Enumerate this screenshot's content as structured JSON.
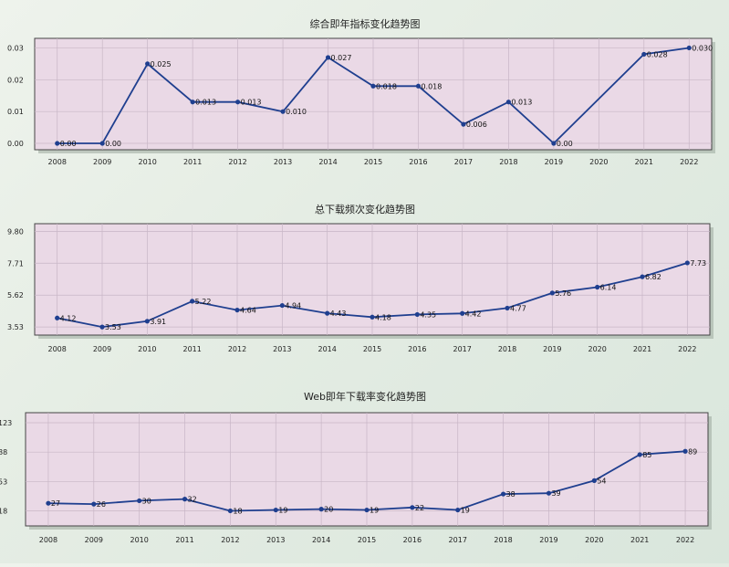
{
  "charts": [
    {
      "title": "综合即年指标变化趋势图",
      "chart_type": "line",
      "y_ticks": [
        "0.00",
        "0.01",
        "0.02",
        "0.03"
      ],
      "x_labels": [
        "2008",
        "2009",
        "2010",
        "2011",
        "2012",
        "2013",
        "2014",
        "2015",
        "2016",
        "2017",
        "2018",
        "2019",
        "2020",
        "2021",
        "2022"
      ],
      "x": [
        2008,
        2009,
        2010,
        2011,
        2012,
        2013,
        2014,
        2015,
        2016,
        2017,
        2018,
        2019,
        2020,
        2021,
        2022
      ],
      "y": [
        0.0,
        0.0,
        0.025,
        0.013,
        0.013,
        0.01,
        0.027,
        0.018,
        0.018,
        0.006,
        0.013,
        0.0,
        null,
        0.028,
        0.03
      ],
      "labels": [
        "0.00",
        "0.00",
        "0.025",
        "0.013",
        "0.013",
        "0.010",
        "0.027",
        "0.018",
        "0.018",
        "0.006",
        "0.013",
        "0.00",
        null,
        "0.028",
        "0.030"
      ],
      "ylim": [
        -0.002,
        0.033
      ],
      "color": "#1f3f8f"
    },
    {
      "title": "总下载频次变化趋势图",
      "chart_type": "line",
      "y_ticks": [
        "3.53",
        "5.62",
        "7.71",
        "9.80"
      ],
      "x_labels": [
        "2008",
        "2009",
        "2010",
        "2011",
        "2012",
        "2013",
        "2014",
        "2015",
        "2016",
        "2017",
        "2018",
        "2019",
        "2020",
        "2021",
        "2022"
      ],
      "x": [
        2008,
        2009,
        2010,
        2011,
        2012,
        2013,
        2014,
        2015,
        2016,
        2017,
        2018,
        2019,
        2020,
        2021,
        2022
      ],
      "y": [
        4.12,
        3.53,
        3.91,
        5.22,
        4.64,
        4.94,
        4.43,
        4.18,
        4.35,
        4.42,
        4.77,
        5.76,
        6.14,
        6.82,
        7.73
      ],
      "labels": [
        "4.12",
        "3.53",
        "3.91",
        "5.22",
        "4.64",
        "4.94",
        "4.43",
        "4.18",
        "4.35",
        "4.42",
        "4.77",
        "5.76",
        "6.14",
        "6.82",
        "7.73"
      ],
      "ylim": [
        3.0,
        10.3
      ],
      "color": "#1f3f8f"
    },
    {
      "title": "Web即年下载率变化趋势图",
      "chart_type": "line",
      "y_ticks": [
        "18",
        "53",
        "88",
        "123"
      ],
      "x_labels": [
        "2008",
        "2009",
        "2010",
        "2011",
        "2012",
        "2013",
        "2014",
        "2015",
        "2016",
        "2017",
        "2018",
        "2019",
        "2020",
        "2021",
        "2022"
      ],
      "x": [
        2008,
        2009,
        2010,
        2011,
        2012,
        2013,
        2014,
        2015,
        2016,
        2017,
        2018,
        2019,
        2020,
        2021,
        2022
      ],
      "y": [
        27,
        26,
        30,
        32,
        18,
        19,
        20,
        19,
        22,
        19,
        38,
        39,
        54,
        85,
        89
      ],
      "labels": [
        "27",
        "26",
        "30",
        "32",
        "18",
        "19",
        "20",
        "19",
        "22",
        "19",
        "38",
        "39",
        "54",
        "85",
        "89"
      ],
      "ylim": [
        0,
        135
      ],
      "color": "#1f3f8f"
    }
  ],
  "chart_data": [
    {
      "type": "line",
      "title": "综合即年指标变化趋势图",
      "x": [
        2008,
        2009,
        2010,
        2011,
        2012,
        2013,
        2014,
        2015,
        2016,
        2017,
        2018,
        2019,
        2020,
        2021,
        2022
      ],
      "values": [
        0.0,
        0.0,
        0.025,
        0.013,
        0.013,
        0.01,
        0.027,
        0.018,
        0.018,
        0.006,
        0.013,
        0.0,
        null,
        0.028,
        0.03
      ],
      "ylim": [
        -0.002,
        0.033
      ]
    },
    {
      "type": "line",
      "title": "总下载频次变化趋势图",
      "x": [
        2008,
        2009,
        2010,
        2011,
        2012,
        2013,
        2014,
        2015,
        2016,
        2017,
        2018,
        2019,
        2020,
        2021,
        2022
      ],
      "values": [
        4.12,
        3.53,
        3.91,
        5.22,
        4.64,
        4.94,
        4.43,
        4.18,
        4.35,
        4.42,
        4.77,
        5.76,
        6.14,
        6.82,
        7.73
      ],
      "ylim": [
        3.0,
        10.3
      ]
    },
    {
      "type": "line",
      "title": "Web即年下载率变化趋势图",
      "x": [
        2008,
        2009,
        2010,
        2011,
        2012,
        2013,
        2014,
        2015,
        2016,
        2017,
        2018,
        2019,
        2020,
        2021,
        2022
      ],
      "values": [
        27,
        26,
        30,
        32,
        18,
        19,
        20,
        19,
        22,
        19,
        38,
        39,
        54,
        85,
        89
      ],
      "ylim": [
        0,
        135
      ]
    }
  ]
}
